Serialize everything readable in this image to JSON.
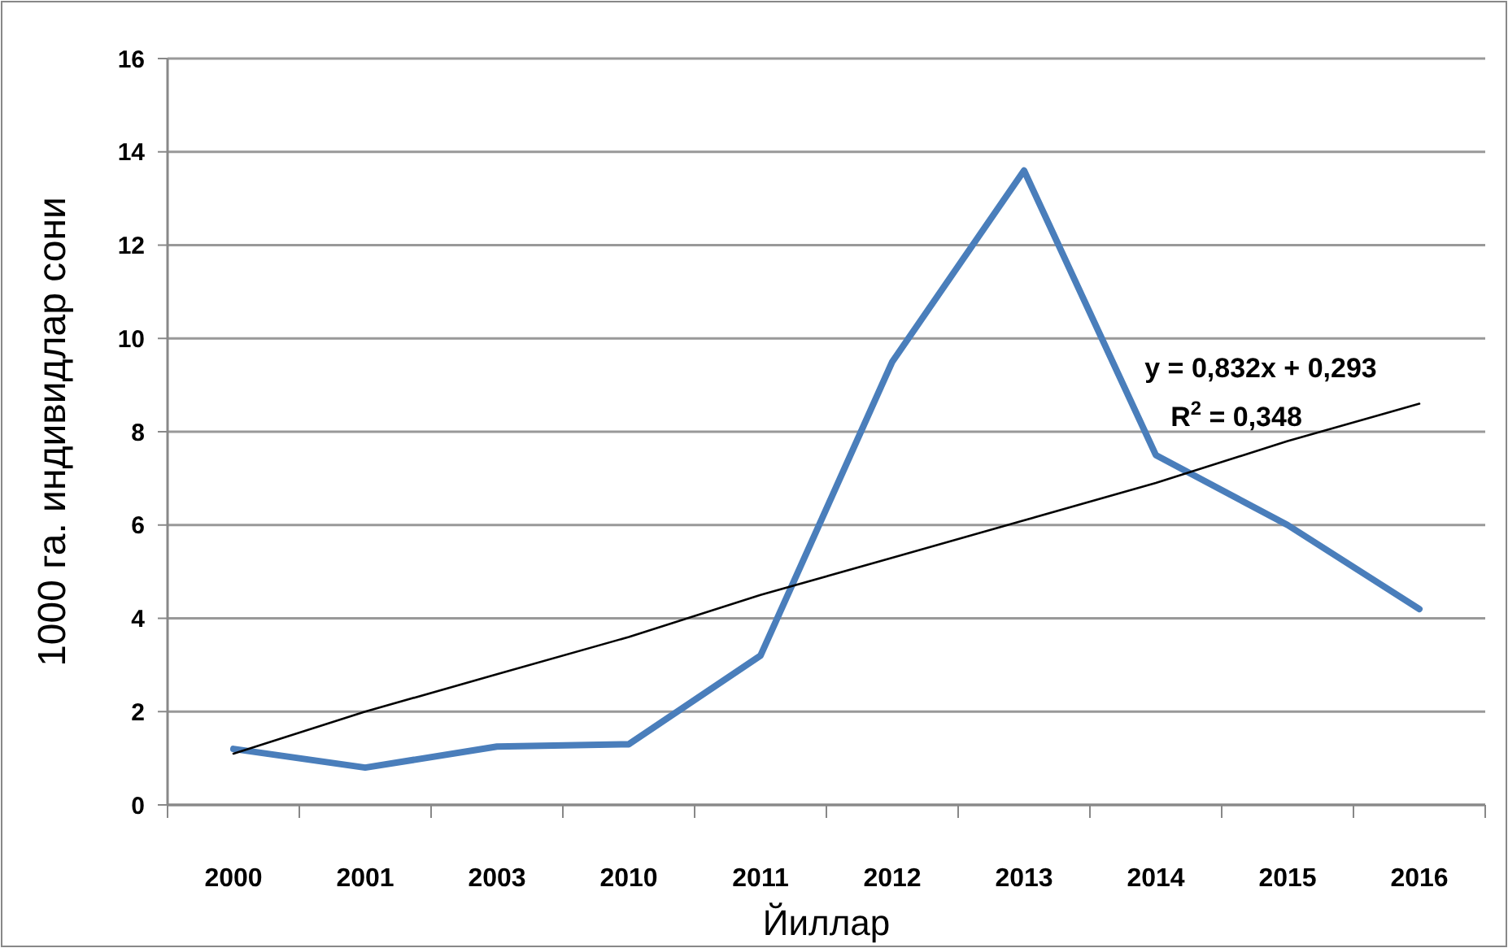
{
  "chart_data": {
    "type": "line",
    "xlabel": "Йиллар",
    "ylabel": "1000 га. индивидлар сони",
    "categories": [
      "2000",
      "2001",
      "2003",
      "2010",
      "2011",
      "2012",
      "2013",
      "2014",
      "2015",
      "2016"
    ],
    "series": [
      {
        "color": "#4a7ebb",
        "values": [
          1.2,
          0.8,
          1.25,
          1.3,
          3.2,
          9.5,
          13.6,
          7.5,
          6.0,
          4.2
        ]
      },
      {
        "type": "line",
        "color": "#000000",
        "values": [
          1.1,
          2.0,
          2.8,
          3.6,
          4.5,
          5.3,
          6.1,
          6.9,
          7.8,
          8.6
        ]
      }
    ],
    "ylim": [
      0,
      16
    ],
    "yticks": [
      0,
      2,
      4,
      6,
      8,
      10,
      12,
      14,
      16
    ],
    "grid": "y",
    "annotations": [
      "y = 0,832x + 0,293",
      "R$^{2}$ = 0,348"
    ]
  }
}
